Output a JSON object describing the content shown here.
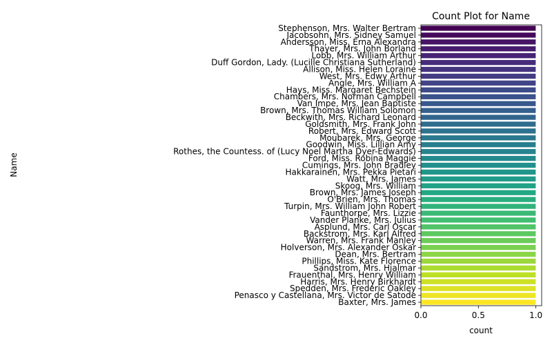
{
  "chart_data": {
    "type": "bar",
    "orientation": "horizontal",
    "title": "Count Plot for Name",
    "xlabel": "count",
    "ylabel": "Name",
    "xlim": [
      0,
      1.05
    ],
    "xticks": [
      0.0,
      0.5,
      1.0
    ],
    "xtick_labels": [
      "0.0",
      "0.5",
      "1.0"
    ],
    "palette": "viridis",
    "colors": {
      "first": "#440154",
      "middle": "#21908d",
      "last": "#fde725"
    },
    "categories": [
      "Stephenson, Mrs. Walter Bertram",
      "Jacobsohn, Mrs. Sidney Samuel",
      "Andersson, Miss. Erna Alexandra",
      "Thayer, Mrs. John Borland",
      "Lobb, Mrs. William Arthur",
      "Duff Gordon, Lady. (Lucille Christiana Sutherland)",
      "Allison, Miss. Helen Loraine",
      "West, Mrs. Edwy Arthur",
      "Angle, Mrs. William A",
      "Hays, Miss. Margaret Bechstein",
      "Chambers, Mrs. Norman Campbell",
      "Van Impe, Mrs. Jean Baptiste",
      "Brown, Mrs. Thomas William Solomon",
      "Beckwith, Mrs. Richard Leonard",
      "Goldsmith, Mrs. Frank John",
      "Robert, Mrs. Edward Scott",
      "Moubarek, Mrs. George",
      "Goodwin, Miss. Lillian Amy",
      "Rothes, the Countess. of (Lucy Noel Martha Dyer-Edwards)",
      "Ford, Miss. Robina Maggie",
      "Cumings, Mrs. John Bradley",
      "Hakkarainen, Mrs. Pekka Pietari",
      "Watt, Mrs. James",
      "Skoog, Mrs. William",
      "Brown, Mrs. James Joseph",
      "O'Brien, Mrs. Thomas",
      "Turpin, Mrs. William John Robert",
      "Faunthorpe, Mrs. Lizzie",
      "Vander Planke, Mrs. Julius",
      "Asplund, Mrs. Carl Oscar",
      "Backstrom, Mrs. Karl Alfred",
      "Warren, Mrs. Frank Manley",
      "Holverson, Mrs. Alexander Oskar",
      "Dean, Mrs. Bertram",
      "Phillips, Miss. Kate Florence",
      "Sandstrom, Mrs. Hjalmar",
      "Frauenthal, Mrs. Henry William",
      "Harris, Mrs. Henry Birkhardt",
      "Spedden, Mrs. Frederic Oakley",
      "Penasco y Castellana, Mrs. Victor de Satode",
      "Baxter, Mrs. James"
    ],
    "values": [
      1,
      1,
      1,
      1,
      1,
      1,
      1,
      1,
      1,
      1,
      1,
      1,
      1,
      1,
      1,
      1,
      1,
      1,
      1,
      1,
      1,
      1,
      1,
      1,
      1,
      1,
      1,
      1,
      1,
      1,
      1,
      1,
      1,
      1,
      1,
      1,
      1,
      1,
      1,
      1,
      1
    ]
  }
}
